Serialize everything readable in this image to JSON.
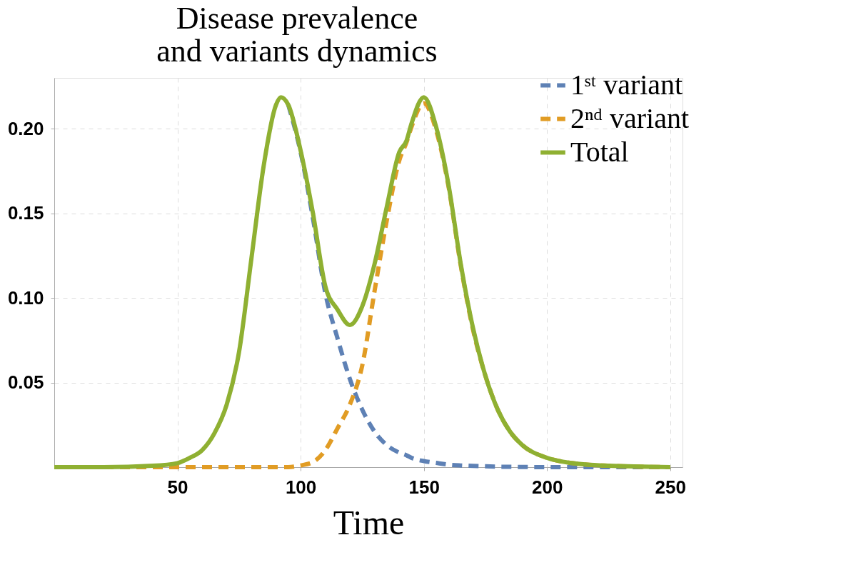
{
  "chart_data": {
    "type": "line",
    "title": [
      "Disease prevalence",
      "and variants dynamics"
    ],
    "xlabel": "Time",
    "x": [
      0,
      20,
      40,
      50,
      55,
      60,
      65,
      70,
      75,
      80,
      85,
      90,
      92,
      95,
      100,
      105,
      110,
      115,
      120,
      125,
      130,
      135,
      140,
      143,
      145,
      150,
      155,
      160,
      165,
      170,
      175,
      180,
      185,
      190,
      200,
      210,
      225,
      250
    ],
    "series": [
      {
        "name": "1ˢᵗ variant",
        "color": "#5e81b5",
        "line_style": "dashed",
        "values": [
          null,
          null,
          null,
          null,
          null,
          null,
          null,
          null,
          null,
          null,
          null,
          null,
          null,
          0.214,
          0.186,
          0.147,
          0.103,
          0.076,
          0.052,
          0.034,
          0.021,
          0.013,
          0.0086,
          0.007,
          0.0055,
          0.0036,
          0.0025,
          0.0015,
          0.001,
          0.0007,
          0.0005,
          0.0003,
          0.0002,
          0.0001,
          0,
          0,
          0,
          0
        ]
      },
      {
        "name": "2ⁿᵈ variant",
        "color": "#e19c24",
        "line_style": "dashed",
        "values": [
          0,
          0,
          0,
          0,
          0,
          0,
          0,
          0,
          0,
          0,
          0,
          0,
          0,
          0,
          0.001,
          0.003,
          0.01,
          0.023,
          0.037,
          0.06,
          0.104,
          0.146,
          0.181,
          0.192,
          0.201,
          0.215,
          0.199,
          0.166,
          0.119,
          0.081,
          0.054,
          0.034,
          0.021,
          0.013,
          0.0055,
          0.0024,
          0.0008,
          0
        ]
      },
      {
        "name": "Total",
        "color": "#8fb032",
        "line_style": "solid",
        "values": [
          0,
          0,
          0.0008,
          0.0024,
          0.0055,
          0.01,
          0.02,
          0.037,
          0.068,
          0.123,
          0.178,
          0.214,
          0.2185,
          0.214,
          0.187,
          0.15,
          0.107,
          0.093,
          0.084,
          0.095,
          0.12,
          0.154,
          0.186,
          0.193,
          0.203,
          0.2185,
          0.201,
          0.167,
          0.12,
          0.082,
          0.054,
          0.034,
          0.021,
          0.013,
          0.0055,
          0.0024,
          0.0008,
          0
        ]
      }
    ],
    "xlim": [
      0,
      255
    ],
    "ylim": [
      0,
      0.23
    ],
    "xticks": [
      50,
      100,
      150,
      200,
      250
    ],
    "yticks": [
      0.05,
      {
        "value": 0.1,
        "label": "0.10"
      },
      0.15,
      {
        "value": 0.2,
        "label": "0.20"
      }
    ],
    "grid": true,
    "legend": "top right",
    "marker": "none"
  }
}
